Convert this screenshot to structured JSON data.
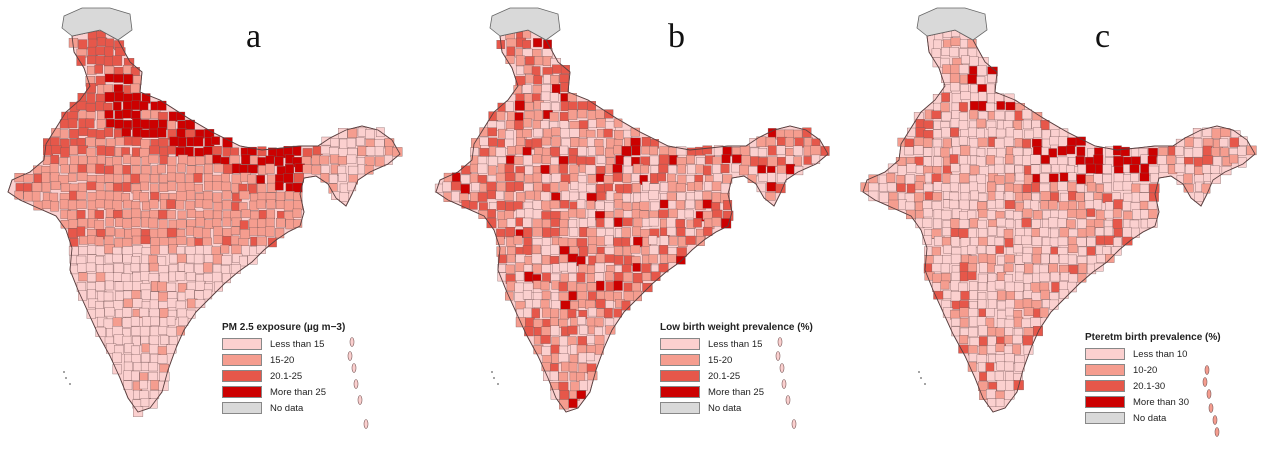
{
  "colors": {
    "nodata": "#d9d9d9",
    "border": "#7a5a5a",
    "c1": "#fbd0cf",
    "c2": "#f59d8f",
    "c3": "#e6574a",
    "c4": "#cc0000"
  },
  "panels": [
    {
      "letter": "a",
      "legend": {
        "title": "PM 2.5 exposure (µg m−3)",
        "items": [
          {
            "label": "Less than 15",
            "color": "#fbd0cf"
          },
          {
            "label": "15-20",
            "color": "#f59d8f"
          },
          {
            "label": "20.1-25",
            "color": "#e6574a"
          },
          {
            "label": "More than 25",
            "color": "#cc0000"
          },
          {
            "label": "No data",
            "color": "#d9d9d9"
          }
        ]
      }
    },
    {
      "letter": "b",
      "legend": {
        "title": "Low birth weight prevalence (%)",
        "items": [
          {
            "label": "Less than 15",
            "color": "#fbd0cf"
          },
          {
            "label": "15-20",
            "color": "#f59d8f"
          },
          {
            "label": "20.1-25",
            "color": "#e6574a"
          },
          {
            "label": "More than 25",
            "color": "#cc0000"
          },
          {
            "label": "No data",
            "color": "#d9d9d9"
          }
        ]
      }
    },
    {
      "letter": "c",
      "legend": {
        "title": "Pteretm birth prevalence (%)",
        "items": [
          {
            "label": "Less than 10",
            "color": "#fbd0cf"
          },
          {
            "label": "10-20",
            "color": "#f59d8f"
          },
          {
            "label": "20.1-30",
            "color": "#e6574a"
          },
          {
            "label": "More than 30",
            "color": "#cc0000"
          },
          {
            "label": "No data",
            "color": "#d9d9d9"
          }
        ]
      }
    }
  ]
}
